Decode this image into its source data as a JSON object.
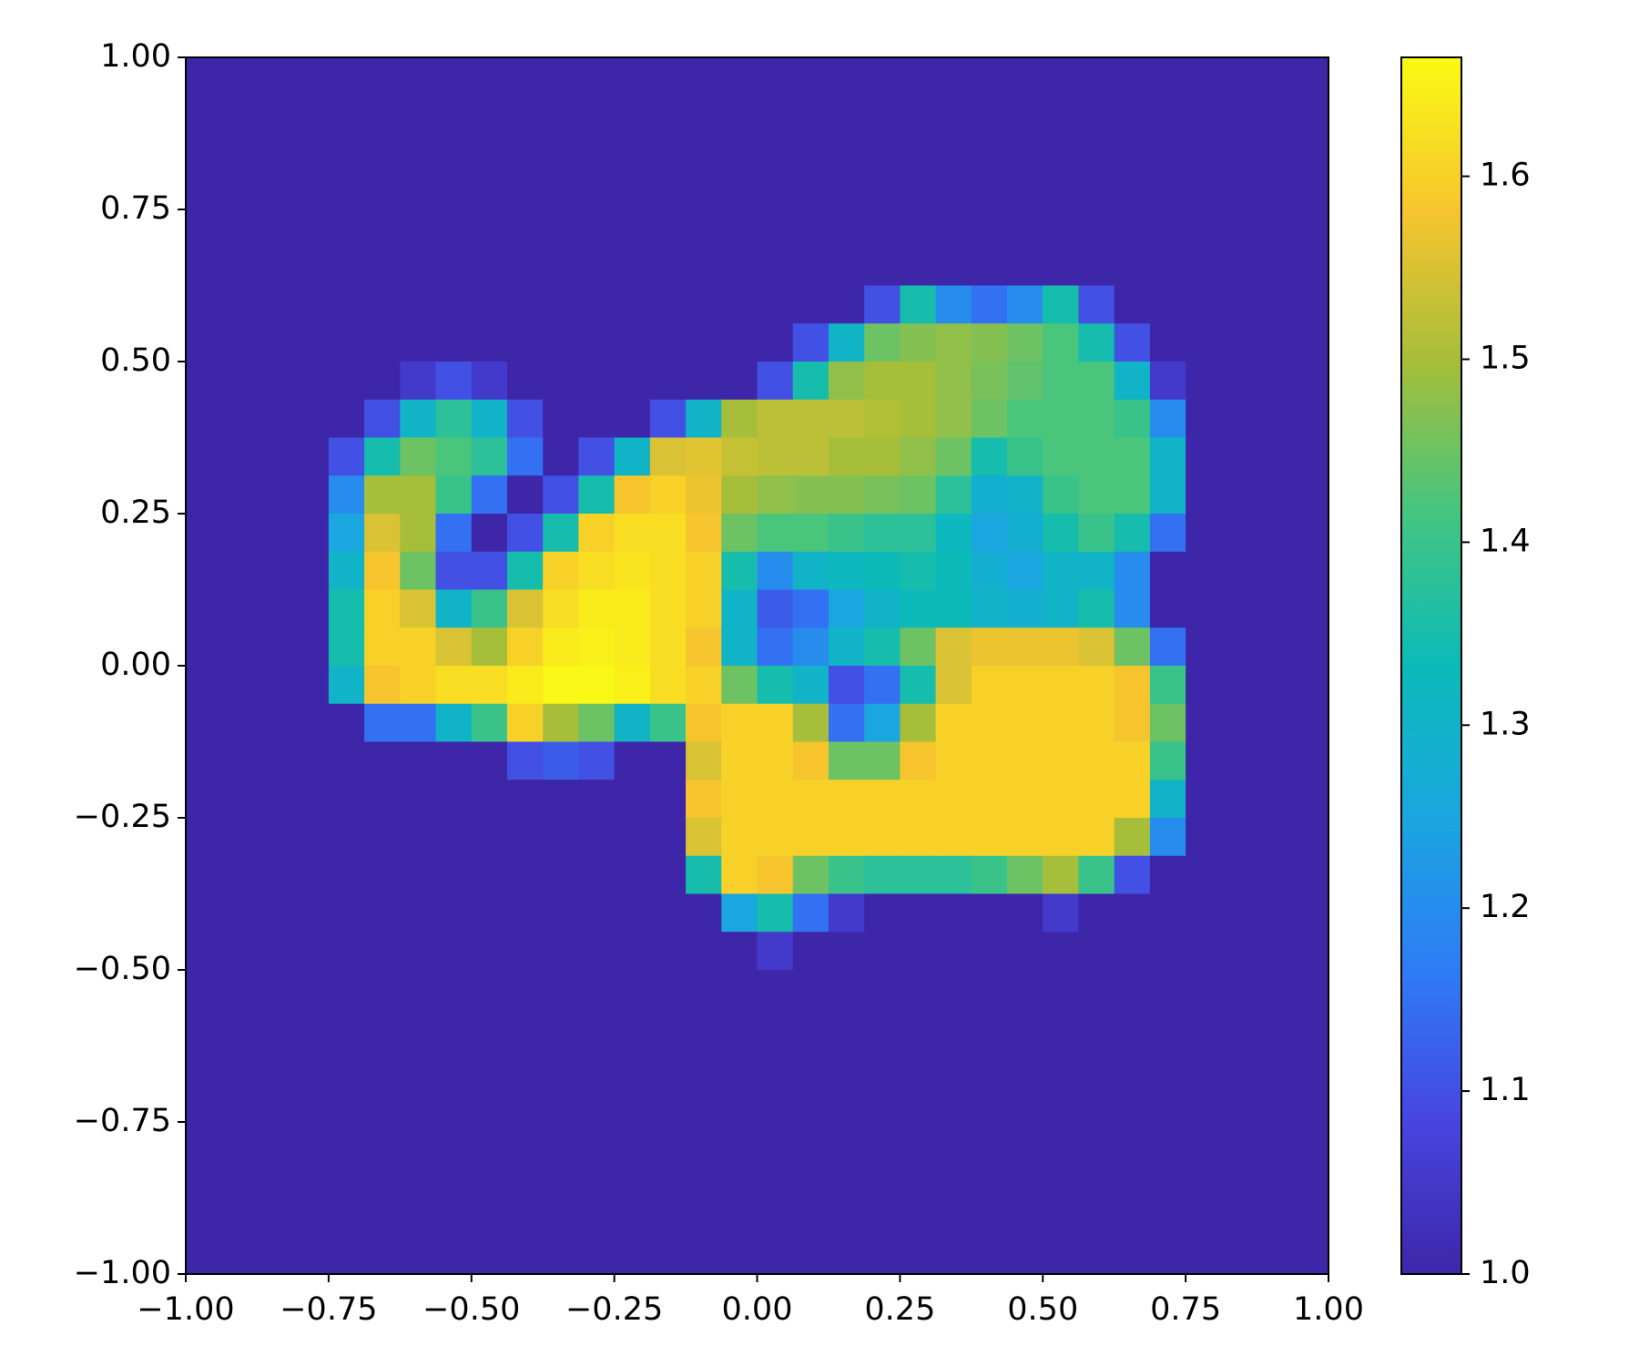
{
  "chart_data": {
    "type": "heatmap",
    "xlim": [
      -1,
      1
    ],
    "ylim": [
      -1,
      1
    ],
    "xticks": [
      {
        "value": -1,
        "label": "−1.00"
      },
      {
        "value": -0.75,
        "label": "−0.75"
      },
      {
        "value": -0.5,
        "label": "−0.50"
      },
      {
        "value": -0.25,
        "label": "−0.25"
      },
      {
        "value": 0,
        "label": "0.00"
      },
      {
        "value": 0.25,
        "label": "0.25"
      },
      {
        "value": 0.5,
        "label": "0.50"
      },
      {
        "value": 0.75,
        "label": "0.75"
      },
      {
        "value": 1,
        "label": "1.00"
      }
    ],
    "yticks": [
      {
        "value": -1,
        "label": "−1.00"
      },
      {
        "value": -0.75,
        "label": "−0.75"
      },
      {
        "value": -0.5,
        "label": "−0.50"
      },
      {
        "value": -0.25,
        "label": "−0.25"
      },
      {
        "value": 0,
        "label": "0.00"
      },
      {
        "value": 0.25,
        "label": "0.25"
      },
      {
        "value": 0.5,
        "label": "0.50"
      },
      {
        "value": 0.75,
        "label": "0.75"
      },
      {
        "value": 1,
        "label": "1.00"
      }
    ],
    "zlim": [
      1.0,
      1.665
    ],
    "zticks": [
      {
        "value": 1,
        "label": "1.0"
      },
      1.1,
      1.2,
      1.3,
      1.4,
      1.5,
      1.6
    ],
    "colormap": [
      "#3e26a8",
      "#4745e0",
      "#2e7cf6",
      "#1aa6df",
      "#0bbbb8",
      "#44c580",
      "#a6be3a",
      "#f8c52e",
      "#f9fa14"
    ],
    "z": [
      [
        1,
        1,
        1,
        1,
        1,
        1,
        1,
        1,
        1,
        1,
        1,
        1,
        1,
        1,
        1,
        1,
        1,
        1,
        1,
        1,
        1,
        1,
        1,
        1,
        1,
        1,
        1,
        1,
        1,
        1,
        1,
        1
      ],
      [
        1,
        1,
        1,
        1,
        1,
        1,
        1,
        1,
        1,
        1,
        1,
        1,
        1,
        1,
        1,
        1,
        1,
        1,
        1,
        1,
        1,
        1,
        1,
        1,
        1,
        1,
        1,
        1,
        1,
        1,
        1,
        1
      ],
      [
        1,
        1,
        1,
        1,
        1,
        1,
        1,
        1,
        1,
        1,
        1,
        1,
        1,
        1,
        1,
        1,
        1,
        1,
        1,
        1,
        1,
        1,
        1,
        1,
        1,
        1,
        1,
        1,
        1,
        1,
        1,
        1
      ],
      [
        1,
        1,
        1,
        1,
        1,
        1,
        1,
        1,
        1,
        1,
        1,
        1,
        1,
        1,
        1,
        1,
        1,
        1,
        1,
        1,
        1,
        1,
        1,
        1,
        1,
        1,
        1,
        1,
        1,
        1,
        1,
        1
      ],
      [
        1,
        1,
        1,
        1,
        1,
        1,
        1,
        1,
        1,
        1,
        1,
        1,
        1,
        1,
        1,
        1,
        1,
        1,
        1,
        1,
        1,
        1,
        1,
        1,
        1,
        1,
        1,
        1,
        1,
        1,
        1,
        1
      ],
      [
        1,
        1,
        1,
        1,
        1,
        1,
        1,
        1,
        1,
        1,
        1,
        1,
        1,
        1,
        1,
        1,
        1,
        1,
        1,
        1,
        1,
        1,
        1,
        1,
        1,
        1,
        1,
        1,
        1,
        1,
        1,
        1
      ],
      [
        1,
        1,
        1,
        1,
        1,
        1,
        1,
        1,
        1,
        1,
        1,
        1,
        1,
        1,
        1,
        1,
        1,
        1,
        1,
        1.1,
        1.35,
        1.2,
        1.15,
        1.2,
        1.35,
        1.1,
        1,
        1,
        1,
        1,
        1,
        1
      ],
      [
        1,
        1,
        1,
        1,
        1,
        1,
        1,
        1,
        1,
        1,
        1,
        1,
        1,
        1,
        1,
        1,
        1,
        1.1,
        1.3,
        1.45,
        1.47,
        1.48,
        1.47,
        1.45,
        1.42,
        1.35,
        1.1,
        1,
        1,
        1,
        1,
        1
      ],
      [
        1,
        1,
        1,
        1,
        1,
        1,
        1.05,
        1.1,
        1.05,
        1,
        1,
        1,
        1,
        1,
        1,
        1,
        1.1,
        1.35,
        1.48,
        1.5,
        1.5,
        1.48,
        1.46,
        1.44,
        1.42,
        1.42,
        1.3,
        1.05,
        1,
        1,
        1,
        1
      ],
      [
        1,
        1,
        1,
        1,
        1,
        1.1,
        1.3,
        1.38,
        1.3,
        1.1,
        1,
        1,
        1,
        1.1,
        1.3,
        1.5,
        1.52,
        1.52,
        1.52,
        1.51,
        1.5,
        1.48,
        1.45,
        1.42,
        1.42,
        1.42,
        1.4,
        1.2,
        1,
        1,
        1,
        1
      ],
      [
        1,
        1,
        1,
        1,
        1.1,
        1.35,
        1.45,
        1.42,
        1.38,
        1.15,
        1,
        1.1,
        1.3,
        1.55,
        1.56,
        1.53,
        1.52,
        1.52,
        1.5,
        1.5,
        1.48,
        1.45,
        1.35,
        1.4,
        1.42,
        1.42,
        1.42,
        1.3,
        1,
        1,
        1,
        1
      ],
      [
        1,
        1,
        1,
        1,
        1.2,
        1.5,
        1.5,
        1.4,
        1.15,
        1,
        1.1,
        1.35,
        1.58,
        1.6,
        1.57,
        1.5,
        1.48,
        1.47,
        1.47,
        1.46,
        1.45,
        1.38,
        1.28,
        1.3,
        1.4,
        1.42,
        1.42,
        1.3,
        1,
        1,
        1,
        1
      ],
      [
        1,
        1,
        1,
        1,
        1.25,
        1.55,
        1.5,
        1.15,
        1,
        1.1,
        1.35,
        1.6,
        1.62,
        1.62,
        1.58,
        1.45,
        1.42,
        1.42,
        1.4,
        1.38,
        1.38,
        1.32,
        1.25,
        1.28,
        1.35,
        1.4,
        1.35,
        1.15,
        1,
        1,
        1,
        1
      ],
      [
        1,
        1,
        1,
        1,
        1.3,
        1.58,
        1.45,
        1.1,
        1.1,
        1.35,
        1.6,
        1.62,
        1.63,
        1.62,
        1.6,
        1.35,
        1.2,
        1.3,
        1.32,
        1.33,
        1.35,
        1.33,
        1.28,
        1.25,
        1.3,
        1.3,
        1.2,
        1,
        1,
        1,
        1,
        1
      ],
      [
        1,
        1,
        1,
        1,
        1.35,
        1.6,
        1.55,
        1.3,
        1.4,
        1.55,
        1.62,
        1.64,
        1.64,
        1.62,
        1.6,
        1.3,
        1.12,
        1.15,
        1.25,
        1.3,
        1.33,
        1.33,
        1.3,
        1.28,
        1.3,
        1.35,
        1.2,
        1,
        1,
        1,
        1,
        1
      ],
      [
        1,
        1,
        1,
        1,
        1.35,
        1.6,
        1.6,
        1.55,
        1.5,
        1.6,
        1.64,
        1.65,
        1.64,
        1.62,
        1.58,
        1.3,
        1.15,
        1.2,
        1.3,
        1.35,
        1.45,
        1.55,
        1.57,
        1.57,
        1.57,
        1.55,
        1.45,
        1.15,
        1,
        1,
        1,
        1
      ],
      [
        1,
        1,
        1,
        1,
        1.3,
        1.58,
        1.6,
        1.62,
        1.62,
        1.64,
        1.66,
        1.66,
        1.65,
        1.62,
        1.6,
        1.45,
        1.35,
        1.3,
        1.1,
        1.15,
        1.35,
        1.55,
        1.6,
        1.6,
        1.6,
        1.6,
        1.58,
        1.4,
        1,
        1,
        1,
        1
      ],
      [
        1,
        1,
        1,
        1,
        1,
        1.15,
        1.15,
        1.3,
        1.4,
        1.6,
        1.5,
        1.45,
        1.3,
        1.4,
        1.58,
        1.6,
        1.6,
        1.5,
        1.15,
        1.25,
        1.5,
        1.6,
        1.6,
        1.6,
        1.6,
        1.6,
        1.58,
        1.45,
        1,
        1,
        1,
        1
      ],
      [
        1,
        1,
        1,
        1,
        1,
        1,
        1,
        1,
        1,
        1.1,
        1.12,
        1.1,
        1,
        1,
        1.55,
        1.6,
        1.6,
        1.58,
        1.45,
        1.45,
        1.58,
        1.6,
        1.6,
        1.6,
        1.6,
        1.6,
        1.6,
        1.4,
        1,
        1,
        1,
        1
      ],
      [
        1,
        1,
        1,
        1,
        1,
        1,
        1,
        1,
        1,
        1,
        1,
        1,
        1,
        1,
        1.58,
        1.6,
        1.6,
        1.6,
        1.6,
        1.6,
        1.6,
        1.6,
        1.6,
        1.6,
        1.6,
        1.6,
        1.6,
        1.3,
        1,
        1,
        1,
        1
      ],
      [
        1,
        1,
        1,
        1,
        1,
        1,
        1,
        1,
        1,
        1,
        1,
        1,
        1,
        1,
        1.55,
        1.6,
        1.6,
        1.6,
        1.6,
        1.6,
        1.6,
        1.6,
        1.6,
        1.6,
        1.6,
        1.6,
        1.5,
        1.2,
        1,
        1,
        1,
        1
      ],
      [
        1,
        1,
        1,
        1,
        1,
        1,
        1,
        1,
        1,
        1,
        1,
        1,
        1,
        1,
        1.35,
        1.6,
        1.58,
        1.45,
        1.4,
        1.38,
        1.38,
        1.38,
        1.4,
        1.45,
        1.5,
        1.4,
        1.1,
        1,
        1,
        1,
        1,
        1
      ],
      [
        1,
        1,
        1,
        1,
        1,
        1,
        1,
        1,
        1,
        1,
        1,
        1,
        1,
        1,
        1,
        1.25,
        1.35,
        1.15,
        1.05,
        1,
        1,
        1,
        1,
        1,
        1.05,
        1,
        1,
        1,
        1,
        1,
        1,
        1
      ],
      [
        1,
        1,
        1,
        1,
        1,
        1,
        1,
        1,
        1,
        1,
        1,
        1,
        1,
        1,
        1,
        1,
        1.05,
        1,
        1,
        1,
        1,
        1,
        1,
        1,
        1,
        1,
        1,
        1,
        1,
        1,
        1,
        1
      ],
      [
        1,
        1,
        1,
        1,
        1,
        1,
        1,
        1,
        1,
        1,
        1,
        1,
        1,
        1,
        1,
        1,
        1,
        1,
        1,
        1,
        1,
        1,
        1,
        1,
        1,
        1,
        1,
        1,
        1,
        1,
        1,
        1
      ],
      [
        1,
        1,
        1,
        1,
        1,
        1,
        1,
        1,
        1,
        1,
        1,
        1,
        1,
        1,
        1,
        1,
        1,
        1,
        1,
        1,
        1,
        1,
        1,
        1,
        1,
        1,
        1,
        1,
        1,
        1,
        1,
        1
      ],
      [
        1,
        1,
        1,
        1,
        1,
        1,
        1,
        1,
        1,
        1,
        1,
        1,
        1,
        1,
        1,
        1,
        1,
        1,
        1,
        1,
        1,
        1,
        1,
        1,
        1,
        1,
        1,
        1,
        1,
        1,
        1,
        1
      ],
      [
        1,
        1,
        1,
        1,
        1,
        1,
        1,
        1,
        1,
        1,
        1,
        1,
        1,
        1,
        1,
        1,
        1,
        1,
        1,
        1,
        1,
        1,
        1,
        1,
        1,
        1,
        1,
        1,
        1,
        1,
        1,
        1
      ],
      [
        1,
        1,
        1,
        1,
        1,
        1,
        1,
        1,
        1,
        1,
        1,
        1,
        1,
        1,
        1,
        1,
        1,
        1,
        1,
        1,
        1,
        1,
        1,
        1,
        1,
        1,
        1,
        1,
        1,
        1,
        1,
        1
      ],
      [
        1,
        1,
        1,
        1,
        1,
        1,
        1,
        1,
        1,
        1,
        1,
        1,
        1,
        1,
        1,
        1,
        1,
        1,
        1,
        1,
        1,
        1,
        1,
        1,
        1,
        1,
        1,
        1,
        1,
        1,
        1,
        1
      ],
      [
        1,
        1,
        1,
        1,
        1,
        1,
        1,
        1,
        1,
        1,
        1,
        1,
        1,
        1,
        1,
        1,
        1,
        1,
        1,
        1,
        1,
        1,
        1,
        1,
        1,
        1,
        1,
        1,
        1,
        1,
        1,
        1
      ],
      [
        1,
        1,
        1,
        1,
        1,
        1,
        1,
        1,
        1,
        1,
        1,
        1,
        1,
        1,
        1,
        1,
        1,
        1,
        1,
        1,
        1,
        1,
        1,
        1,
        1,
        1,
        1,
        1,
        1,
        1,
        1,
        1
      ]
    ]
  }
}
